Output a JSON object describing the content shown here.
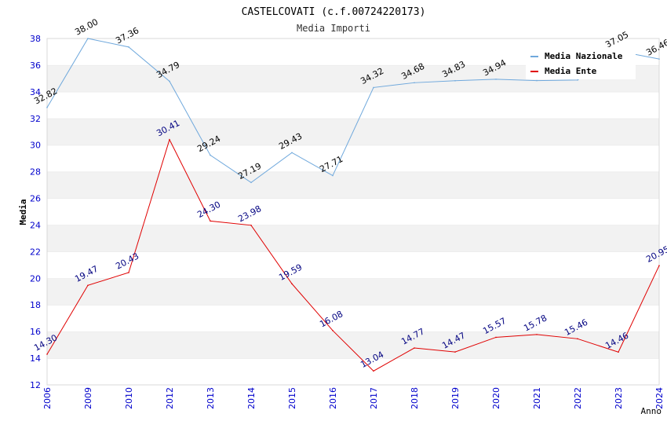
{
  "chart_data": {
    "type": "line",
    "title": "CASTELCOVATI (c.f.00724220173)",
    "subtitle": "Media Importi",
    "xlabel": "Anno",
    "ylabel": "Media",
    "ylim": [
      12,
      38
    ],
    "y_ticks": [
      "12",
      "14",
      "16",
      "18",
      "20",
      "22",
      "24",
      "26",
      "28",
      "30",
      "32",
      "34",
      "36",
      "38"
    ],
    "categories": [
      "2006",
      "2009",
      "2010",
      "2012",
      "2013",
      "2014",
      "2015",
      "2016",
      "2017",
      "2018",
      "2019",
      "2020",
      "2021",
      "2022",
      "2023",
      "2024"
    ],
    "grid": "horizontal bands",
    "legend_placement": "top-right",
    "series": [
      {
        "name": "Media Nazionale",
        "color": "#6fa8dc",
        "label_color": "#000000",
        "values": [
          32.82,
          38.0,
          37.36,
          34.79,
          29.24,
          27.19,
          29.43,
          27.71,
          34.32,
          34.68,
          34.83,
          34.94,
          34.84,
          34.88,
          37.05,
          36.46
        ],
        "labels": [
          "32.82",
          "38.00",
          "37.36",
          "34.79",
          "29.24",
          "27.19",
          "29.43",
          "27.71",
          "34.32",
          "34.68",
          "34.83",
          "34.94",
          "",
          "",
          "37.05",
          "36.46"
        ]
      },
      {
        "name": "Media Ente",
        "color": "#e00000",
        "label_color": "#000080",
        "values": [
          14.3,
          19.47,
          20.43,
          30.41,
          24.3,
          23.98,
          19.59,
          16.08,
          13.04,
          14.77,
          14.47,
          15.57,
          15.78,
          15.46,
          14.46,
          20.95
        ],
        "labels": [
          "14.30",
          "19.47",
          "20.43",
          "30.41",
          "24.30",
          "23.98",
          "19.59",
          "16.08",
          "13.04",
          "14.77",
          "14.47",
          "15.57",
          "15.78",
          "15.46",
          "14.46",
          "20.95"
        ]
      }
    ]
  }
}
